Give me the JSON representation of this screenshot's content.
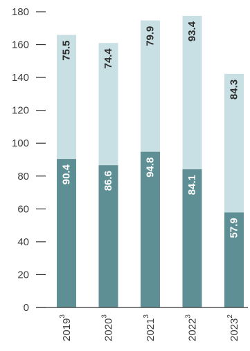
{
  "chart_data": {
    "type": "bar",
    "stacked": true,
    "categories": [
      "2019",
      "2020",
      "2021",
      "2022",
      "2023"
    ],
    "category_superscripts": [
      "3",
      "3",
      "3",
      "3",
      "2"
    ],
    "series": [
      {
        "values": [
          90.4,
          86.6,
          94.8,
          84.1,
          57.9
        ],
        "color": "#5e8f95",
        "label_color": "#ffffff"
      },
      {
        "values": [
          75.5,
          74.4,
          79.9,
          93.4,
          84.3
        ],
        "color": "#c8e0e4",
        "label_color": "#2b2b2b"
      }
    ],
    "ylim": [
      0,
      180
    ],
    "yticks": [
      0,
      20,
      40,
      60,
      80,
      100,
      120,
      140,
      160,
      180
    ],
    "title": "",
    "xlabel": "",
    "ylabel": "",
    "grid": false,
    "legend": "none"
  }
}
